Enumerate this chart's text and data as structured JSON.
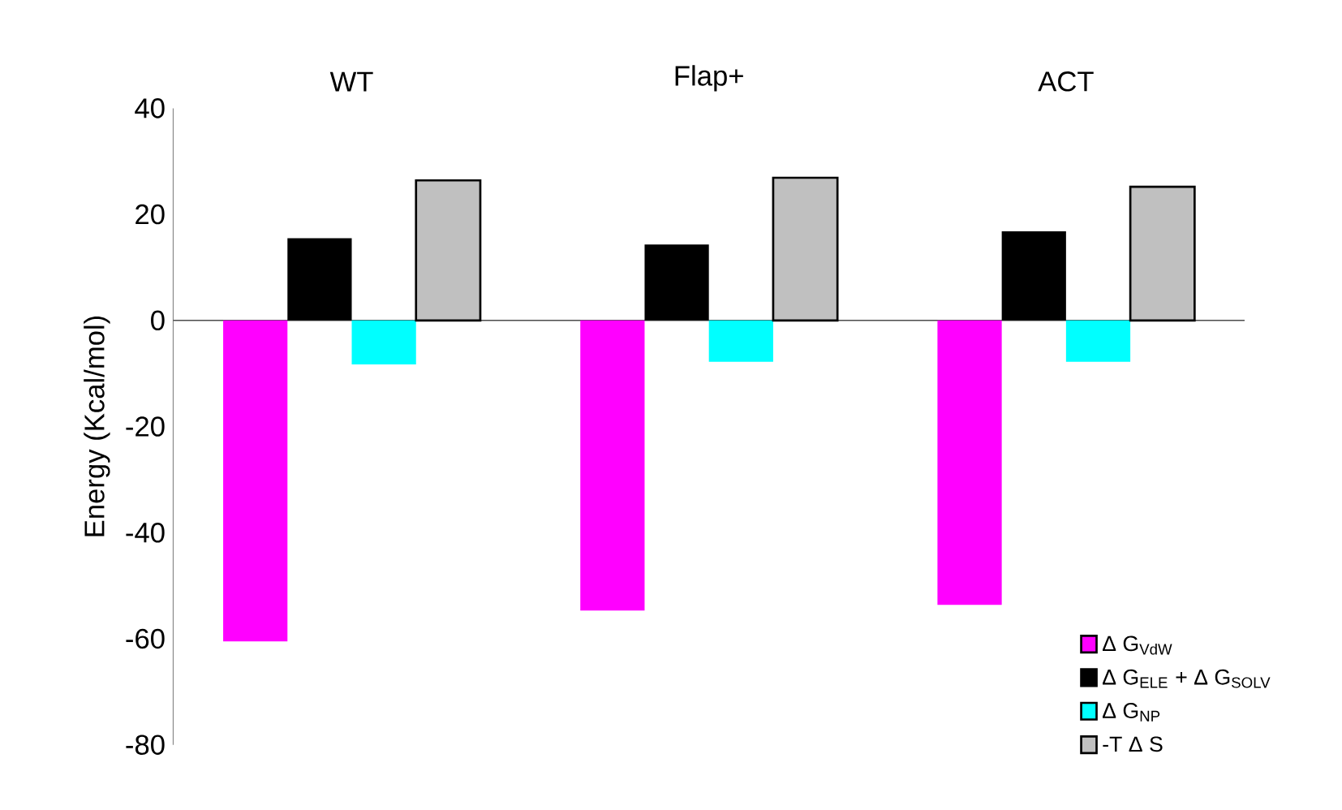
{
  "chart_data": {
    "type": "bar",
    "categories": [
      "WT",
      "Flap+",
      "ACT"
    ],
    "ylabel": "Energy (Kcal/mol)",
    "ylim": [
      -80,
      40
    ],
    "yticks": [
      -80,
      -60,
      -40,
      -20,
      0,
      20,
      40
    ],
    "legend": "bottom right",
    "series": [
      {
        "name": "Δ G$_{VdW}$",
        "color": "#ff00ff",
        "values": [
          -60.5,
          -54.7,
          -53.6
        ]
      },
      {
        "name": "Δ G$_{ELE}$ + Δ G$_{SOLV}$",
        "color": "#000000",
        "values": [
          15.5,
          14.3,
          16.8
        ]
      },
      {
        "name": "Δ G$_{NP}$",
        "color": "#00ffff",
        "values": [
          -8.3,
          -7.8,
          -7.8
        ]
      },
      {
        "name": "-T Δ S",
        "color": "#c0c0c0",
        "values": [
          26.4,
          26.9,
          25.2
        ]
      }
    ]
  }
}
